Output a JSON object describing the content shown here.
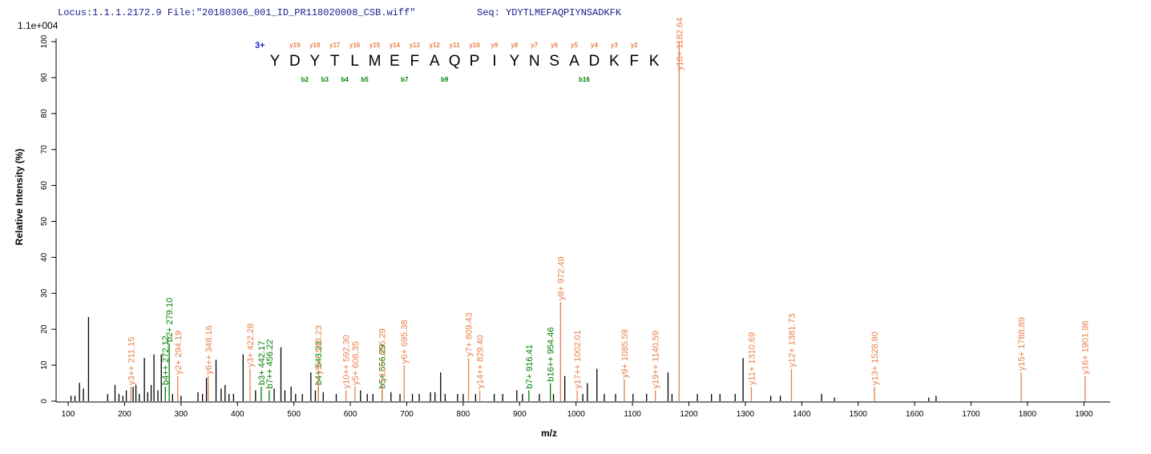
{
  "chart_data": {
    "type": "spectrum",
    "header_locus": "Locus:1.1.1.2172.9 File:\"20180306_001_ID_PR118020008_CSB.wiff\"",
    "header_seq": "Seq: YDYTLMEFAQPIYNSADKFK",
    "scale_label": "1.1e+004",
    "ylabel": "Relative   Intensity (%)",
    "xlabel": "m/z",
    "charge": "3+",
    "sequence": [
      "Y",
      "D",
      "Y",
      "T",
      "L",
      "M",
      "E",
      "F",
      "A",
      "Q",
      "P",
      "I",
      "Y",
      "N",
      "S",
      "A",
      "D",
      "K",
      "F",
      "K"
    ],
    "y_ions": [
      "y19",
      "y18",
      "y17",
      "y16",
      "y15",
      "y14",
      "y13",
      "y12",
      "y11",
      "y10",
      "y9",
      "y8",
      "y7",
      "y6",
      "y5",
      "y4",
      "y3",
      "y2"
    ],
    "b_ions": [
      {
        "label": "b2",
        "n": 2
      },
      {
        "label": "b3",
        "n": 3
      },
      {
        "label": "b4",
        "n": 4
      },
      {
        "label": "b5",
        "n": 5
      },
      {
        "label": "b7",
        "n": 7
      },
      {
        "label": "b9",
        "n": 9
      },
      {
        "label": "b16",
        "n": 16
      }
    ],
    "y_ion_color": "#e8804a",
    "b_ion_color": "#008000",
    "peak_color": "#000000",
    "xlim": [
      80,
      1945
    ],
    "ylim": [
      0,
      100
    ],
    "xticks": [
      100,
      200,
      300,
      400,
      500,
      600,
      700,
      800,
      900,
      1000,
      1100,
      1200,
      1300,
      1400,
      1500,
      1600,
      1700,
      1800,
      1900
    ],
    "yticks": [
      0,
      10,
      20,
      30,
      40,
      50,
      60,
      70,
      80,
      90,
      100
    ],
    "peaks": [
      {
        "mz": 105,
        "intensity": 1.5
      },
      {
        "mz": 112,
        "intensity": 1.5
      },
      {
        "mz": 120,
        "intensity": 5.1
      },
      {
        "mz": 127,
        "intensity": 3.5
      },
      {
        "mz": 136,
        "intensity": 23.4
      },
      {
        "mz": 170,
        "intensity": 2
      },
      {
        "mz": 183,
        "intensity": 4.5
      },
      {
        "mz": 190,
        "intensity": 2
      },
      {
        "mz": 197,
        "intensity": 1.5
      },
      {
        "mz": 203,
        "intensity": 3
      },
      {
        "mz": 215,
        "intensity": 4
      },
      {
        "mz": 220,
        "intensity": 4.5
      },
      {
        "mz": 226,
        "intensity": 2
      },
      {
        "mz": 235,
        "intensity": 12
      },
      {
        "mz": 241,
        "intensity": 2.5
      },
      {
        "mz": 247,
        "intensity": 4.5
      },
      {
        "mz": 252,
        "intensity": 13
      },
      {
        "mz": 259,
        "intensity": 3
      },
      {
        "mz": 265,
        "intensity": 13
      },
      {
        "mz": 285,
        "intensity": 2
      },
      {
        "mz": 300,
        "intensity": 1.5
      },
      {
        "mz": 330,
        "intensity": 2.5
      },
      {
        "mz": 338,
        "intensity": 2
      },
      {
        "mz": 345,
        "intensity": 6.5
      },
      {
        "mz": 362,
        "intensity": 11.5
      },
      {
        "mz": 371,
        "intensity": 3.5
      },
      {
        "mz": 378,
        "intensity": 4.5
      },
      {
        "mz": 385,
        "intensity": 2
      },
      {
        "mz": 393,
        "intensity": 2
      },
      {
        "mz": 410,
        "intensity": 13
      },
      {
        "mz": 432,
        "intensity": 3
      },
      {
        "mz": 465,
        "intensity": 3.5
      },
      {
        "mz": 477,
        "intensity": 15
      },
      {
        "mz": 484,
        "intensity": 3
      },
      {
        "mz": 495,
        "intensity": 4
      },
      {
        "mz": 503,
        "intensity": 2
      },
      {
        "mz": 515,
        "intensity": 2
      },
      {
        "mz": 530,
        "intensity": 8
      },
      {
        "mz": 538,
        "intensity": 3
      },
      {
        "mz": 552,
        "intensity": 2.5
      },
      {
        "mz": 575,
        "intensity": 2
      },
      {
        "mz": 618,
        "intensity": 3
      },
      {
        "mz": 630,
        "intensity": 2
      },
      {
        "mz": 640,
        "intensity": 2
      },
      {
        "mz": 672,
        "intensity": 2.5
      },
      {
        "mz": 688,
        "intensity": 2
      },
      {
        "mz": 710,
        "intensity": 2
      },
      {
        "mz": 722,
        "intensity": 2
      },
      {
        "mz": 742,
        "intensity": 2.5
      },
      {
        "mz": 750,
        "intensity": 2.5
      },
      {
        "mz": 760,
        "intensity": 8
      },
      {
        "mz": 768,
        "intensity": 2
      },
      {
        "mz": 790,
        "intensity": 2
      },
      {
        "mz": 800,
        "intensity": 2
      },
      {
        "mz": 822,
        "intensity": 2
      },
      {
        "mz": 855,
        "intensity": 2
      },
      {
        "mz": 870,
        "intensity": 2
      },
      {
        "mz": 895,
        "intensity": 3
      },
      {
        "mz": 905,
        "intensity": 2
      },
      {
        "mz": 935,
        "intensity": 2
      },
      {
        "mz": 960,
        "intensity": 2
      },
      {
        "mz": 980,
        "intensity": 7
      },
      {
        "mz": 1012,
        "intensity": 2
      },
      {
        "mz": 1020,
        "intensity": 5
      },
      {
        "mz": 1037,
        "intensity": 9
      },
      {
        "mz": 1050,
        "intensity": 2
      },
      {
        "mz": 1070,
        "intensity": 2
      },
      {
        "mz": 1101,
        "intensity": 2
      },
      {
        "mz": 1125,
        "intensity": 2
      },
      {
        "mz": 1163,
        "intensity": 8
      },
      {
        "mz": 1170,
        "intensity": 2
      },
      {
        "mz": 1215,
        "intensity": 2
      },
      {
        "mz": 1240,
        "intensity": 2
      },
      {
        "mz": 1255,
        "intensity": 2
      },
      {
        "mz": 1282,
        "intensity": 2
      },
      {
        "mz": 1296,
        "intensity": 12
      },
      {
        "mz": 1345,
        "intensity": 1.5
      },
      {
        "mz": 1362,
        "intensity": 1.5
      },
      {
        "mz": 1435,
        "intensity": 2
      },
      {
        "mz": 1458,
        "intensity": 1
      },
      {
        "mz": 1625,
        "intensity": 1
      },
      {
        "mz": 1638,
        "intensity": 1.5
      }
    ],
    "annotated_peaks": [
      {
        "label": "y3++ 211.15",
        "mz": 211.15,
        "intensity": 4,
        "ion": "y"
      },
      {
        "label": "b4++ 272.12",
        "mz": 272.12,
        "intensity": 4,
        "ion": "b"
      },
      {
        "label": "b2+ 279.10",
        "mz": 279.1,
        "intensity": 16,
        "ion": "b"
      },
      {
        "label": "y2+ 294.19",
        "mz": 294.19,
        "intensity": 7,
        "ion": "y"
      },
      {
        "label": "y6++ 348.16",
        "mz": 348.16,
        "intensity": 7,
        "ion": "y"
      },
      {
        "label": "y3+ 422.28",
        "mz": 422.28,
        "intensity": 9,
        "ion": "y"
      },
      {
        "label": "b3+ 442.17",
        "mz": 442.17,
        "intensity": 4,
        "ion": "b"
      },
      {
        "label": "b7++ 456.22",
        "mz": 456.22,
        "intensity": 3,
        "ion": "b"
      },
      {
        "label": "b4+ 543.23",
        "mz": 543.23,
        "intensity": 4,
        "ion": "b"
      },
      {
        "label": "y9++ 543.23",
        "mz": 543.23,
        "intensity": 7,
        "ion": "y"
      },
      {
        "label": "y10++ 592.30",
        "mz": 592.3,
        "intensity": 3,
        "ion": "y"
      },
      {
        "label": "y5+ 608.35",
        "mz": 608.35,
        "intensity": 4,
        "ion": "y"
      },
      {
        "label": "b5+ 656.29",
        "mz": 656.29,
        "intensity": 3,
        "ion": "b"
      },
      {
        "label": "y11++ 656.29",
        "mz": 656.29,
        "intensity": 5,
        "ion": "y"
      },
      {
        "label": "y6+ 695.38",
        "mz": 695.38,
        "intensity": 10,
        "ion": "y"
      },
      {
        "label": "y7+ 809.43",
        "mz": 809.43,
        "intensity": 12,
        "ion": "y"
      },
      {
        "label": "y14++ 829.40",
        "mz": 829.4,
        "intensity": 3,
        "ion": "y"
      },
      {
        "label": "b7+ 916.41",
        "mz": 916.41,
        "intensity": 3,
        "ion": "b"
      },
      {
        "label": "b16++ 954.46",
        "mz": 954.46,
        "intensity": 5,
        "ion": "b"
      },
      {
        "label": "y8+ 972.49",
        "mz": 972.49,
        "intensity": 27.6,
        "ion": "y"
      },
      {
        "label": "y17++ 1002.01",
        "mz": 1002.01,
        "intensity": 3,
        "ion": "y"
      },
      {
        "label": "y9+ 1085.59",
        "mz": 1085.59,
        "intensity": 6,
        "ion": "y"
      },
      {
        "label": "y19++ 1140.59",
        "mz": 1140.59,
        "intensity": 3,
        "ion": "y"
      },
      {
        "label": "y10+ 1182.64",
        "mz": 1182.64,
        "intensity": 100,
        "ion": "y"
      },
      {
        "label": "y11+ 1310.69",
        "mz": 1310.69,
        "intensity": 4,
        "ion": "y"
      },
      {
        "label": "y12+ 1381.73",
        "mz": 1381.73,
        "intensity": 9,
        "ion": "y"
      },
      {
        "label": "y13+ 1528.80",
        "mz": 1528.8,
        "intensity": 4,
        "ion": "y"
      },
      {
        "label": "y15+ 1788.89",
        "mz": 1788.89,
        "intensity": 8,
        "ion": "y"
      },
      {
        "label": "y16+ 1901.98",
        "mz": 1901.98,
        "intensity": 7,
        "ion": "y"
      }
    ]
  }
}
